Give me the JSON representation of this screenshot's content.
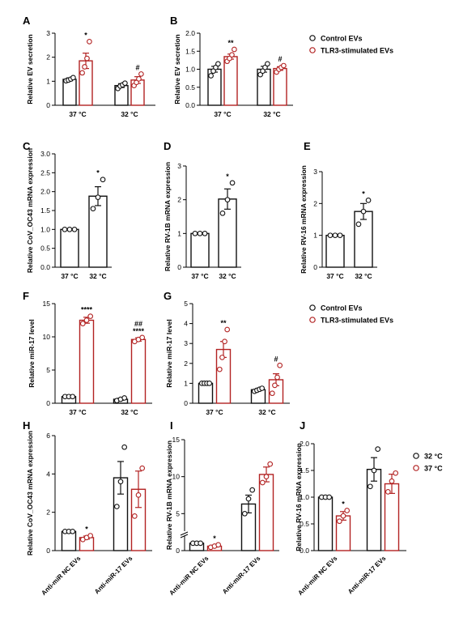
{
  "colors": {
    "control": "#111111",
    "tlr3": "#b22222",
    "t32": "#111111",
    "t37": "#b22222"
  },
  "legend1": {
    "items": [
      {
        "label": "Control EVs",
        "color": "#111111"
      },
      {
        "label": "TLR3-stimulated EVs",
        "color": "#b22222"
      }
    ]
  },
  "legend2": {
    "items": [
      {
        "label": "Control EVs",
        "color": "#111111"
      },
      {
        "label": "TLR3-stimulated EVs",
        "color": "#b22222"
      }
    ]
  },
  "legend3": {
    "items": [
      {
        "label": "32 °C",
        "color": "#111111"
      },
      {
        "label": "37 °C",
        "color": "#b22222"
      }
    ]
  },
  "chart_data": [
    {
      "id": "A",
      "type": "bar",
      "panel": "A",
      "ylabel": "Relative EV secretion",
      "ylim": [
        0,
        3
      ],
      "ticks": [
        0,
        1,
        2,
        3
      ],
      "groups": [
        "37 °C",
        "32 °C"
      ],
      "bars": [
        {
          "group": 0,
          "color": "#111111",
          "mean": 1.08,
          "sem": 0.06,
          "points": [
            1.02,
            1.05,
            1.09,
            1.15
          ]
        },
        {
          "group": 0,
          "color": "#b22222",
          "mean": 1.85,
          "sem": 0.32,
          "points": [
            1.35,
            1.6,
            1.95,
            2.65
          ],
          "sig": "*"
        },
        {
          "group": 1,
          "color": "#111111",
          "mean": 0.82,
          "sem": 0.08,
          "points": [
            0.7,
            0.8,
            0.85,
            0.92
          ]
        },
        {
          "group": 1,
          "color": "#b22222",
          "mean": 1.05,
          "sem": 0.14,
          "points": [
            0.82,
            0.95,
            1.1,
            1.3
          ],
          "sig": "#"
        }
      ]
    },
    {
      "id": "B",
      "type": "bar",
      "panel": "B",
      "ylabel": "Relative EV secretion",
      "ylim": [
        0,
        2
      ],
      "ticks": [
        "0.0",
        "0.5",
        "1.0",
        "1.5",
        "2.0"
      ],
      "tickvals": [
        0,
        0.5,
        1,
        1.5,
        2
      ],
      "groups": [
        "37 °C",
        "32 °C"
      ],
      "bars": [
        {
          "group": 0,
          "color": "#111111",
          "mean": 1.0,
          "sem": 0.08,
          "points": [
            0.82,
            0.95,
            1.05,
            1.15
          ]
        },
        {
          "group": 0,
          "color": "#b22222",
          "mean": 1.35,
          "sem": 0.07,
          "points": [
            1.22,
            1.3,
            1.4,
            1.55
          ],
          "sig": "**"
        },
        {
          "group": 1,
          "color": "#111111",
          "mean": 1.0,
          "sem": 0.08,
          "points": [
            0.85,
            0.95,
            1.05,
            1.15
          ]
        },
        {
          "group": 1,
          "color": "#b22222",
          "mean": 1.02,
          "sem": 0.05,
          "points": [
            0.92,
            1.0,
            1.05,
            1.1
          ],
          "sig": "#"
        }
      ]
    },
    {
      "id": "C",
      "type": "bar",
      "panel": "C",
      "ylabel": "Relative CoV_OC43 mRNA expression",
      "ylim": [
        0,
        3
      ],
      "ticks": [
        "0.0",
        "0.5",
        "1.0",
        "1.5",
        "2.0",
        "2.5",
        "3.0"
      ],
      "tickvals": [
        0,
        0.5,
        1,
        1.5,
        2,
        2.5,
        3
      ],
      "groups": [
        "37 °C",
        "32 °C"
      ],
      "bars": [
        {
          "group": 0,
          "color": "#111111",
          "mean": 1.0,
          "sem": 0.0,
          "points": [
            1.0,
            1.0,
            1.0
          ]
        },
        {
          "group": 1,
          "color": "#111111",
          "mean": 1.88,
          "sem": 0.25,
          "points": [
            1.55,
            1.85,
            2.32
          ],
          "sig": "*"
        }
      ]
    },
    {
      "id": "D",
      "type": "bar",
      "panel": "D",
      "ylabel": "Relative RV-1B mRNA expression",
      "ylim": [
        0,
        3
      ],
      "ticks": [
        "0",
        "1",
        "2",
        "3"
      ],
      "tickvals": [
        0,
        1,
        2,
        3
      ],
      "groups": [
        "37 °C",
        "32 °C"
      ],
      "bars": [
        {
          "group": 0,
          "color": "#111111",
          "mean": 1.0,
          "sem": 0.0,
          "points": [
            1.0,
            1.0,
            1.0
          ]
        },
        {
          "group": 1,
          "color": "#111111",
          "mean": 2.02,
          "sem": 0.3,
          "points": [
            1.6,
            2.0,
            2.5
          ],
          "sig": "*"
        }
      ]
    },
    {
      "id": "E",
      "type": "bar",
      "panel": "E",
      "ylabel": "Relative RV-16 mRNA expression",
      "ylim": [
        0,
        3
      ],
      "ticks": [
        "0",
        "1",
        "2",
        "3"
      ],
      "tickvals": [
        0,
        1,
        2,
        3
      ],
      "groups": [
        "37 °C",
        "32 °C"
      ],
      "bars": [
        {
          "group": 0,
          "color": "#111111",
          "mean": 1.0,
          "sem": 0.0,
          "points": [
            1.0,
            1.0,
            1.0
          ]
        },
        {
          "group": 1,
          "color": "#111111",
          "mean": 1.75,
          "sem": 0.25,
          "points": [
            1.35,
            1.75,
            2.1
          ],
          "sig": "*"
        }
      ]
    },
    {
      "id": "F",
      "type": "bar",
      "panel": "F",
      "ylabel": "Relative miR-17 level",
      "ylim": [
        0,
        15
      ],
      "ticks": [
        "0",
        "5",
        "10",
        "15"
      ],
      "tickvals": [
        0,
        5,
        10,
        15
      ],
      "groups": [
        "37 °C",
        "32 °C"
      ],
      "bars": [
        {
          "group": 0,
          "color": "#111111",
          "mean": 1.0,
          "sem": 0.05,
          "points": [
            1.0,
            1.0,
            1.0
          ]
        },
        {
          "group": 0,
          "color": "#b22222",
          "mean": 12.5,
          "sem": 0.45,
          "points": [
            12.0,
            12.5,
            13.1
          ],
          "sig": "****"
        },
        {
          "group": 1,
          "color": "#111111",
          "mean": 0.6,
          "sem": 0.15,
          "points": [
            0.4,
            0.6,
            0.8
          ]
        },
        {
          "group": 1,
          "color": "#b22222",
          "mean": 9.6,
          "sem": 0.25,
          "points": [
            9.3,
            9.6,
            9.9
          ],
          "sig": "****",
          "sig2": "##"
        }
      ]
    },
    {
      "id": "G",
      "type": "bar",
      "panel": "G",
      "ylabel": "Relative miR-17 level",
      "ylim": [
        0,
        5
      ],
      "ticks": [
        "0",
        "1",
        "2",
        "3",
        "4",
        "5"
      ],
      "tickvals": [
        0,
        1,
        2,
        3,
        4,
        5
      ],
      "groups": [
        "37 °C",
        "32 °C"
      ],
      "bars": [
        {
          "group": 0,
          "color": "#111111",
          "mean": 1.0,
          "sem": 0.0,
          "points": [
            1.0,
            1.0,
            1.0,
            1.0
          ]
        },
        {
          "group": 0,
          "color": "#b22222",
          "mean": 2.7,
          "sem": 0.4,
          "points": [
            1.7,
            2.3,
            3.1,
            3.7
          ],
          "sig": "**"
        },
        {
          "group": 1,
          "color": "#111111",
          "mean": 0.68,
          "sem": 0.06,
          "points": [
            0.6,
            0.65,
            0.7,
            0.75
          ]
        },
        {
          "group": 1,
          "color": "#b22222",
          "mean": 1.18,
          "sem": 0.3,
          "points": [
            0.5,
            0.9,
            1.3,
            1.9
          ],
          "sig": "#"
        }
      ]
    },
    {
      "id": "H",
      "type": "bar",
      "panel": "H",
      "ylabel": "Relative CoV_OC43 mRNA expression",
      "ylim": [
        0,
        6
      ],
      "ticks": [
        "0",
        "2",
        "4",
        "6"
      ],
      "tickvals": [
        0,
        2,
        4,
        6
      ],
      "groups": [
        "Anti-miR NC EVs",
        "Anti-miR-17 EVs"
      ],
      "bars": [
        {
          "group": 0,
          "color": "#111111",
          "mean": 1.0,
          "sem": 0.0,
          "points": [
            1.0,
            1.0,
            1.0
          ]
        },
        {
          "group": 0,
          "color": "#b22222",
          "mean": 0.68,
          "sem": 0.08,
          "points": [
            0.58,
            0.68,
            0.78
          ],
          "sig": "*"
        },
        {
          "group": 1,
          "color": "#111111",
          "mean": 3.8,
          "sem": 0.85,
          "points": [
            2.3,
            3.6,
            5.4
          ]
        },
        {
          "group": 1,
          "color": "#b22222",
          "mean": 3.2,
          "sem": 0.95,
          "points": [
            1.8,
            2.9,
            4.3
          ]
        }
      ]
    },
    {
      "id": "I",
      "type": "bar",
      "panel": "I",
      "ylabel": "Relative RV-1B mRNA expression",
      "broken_axis": true,
      "ylim": [
        0,
        15
      ],
      "ticks": [
        "0",
        "5",
        "10",
        "15"
      ],
      "tickvals": [
        0,
        5,
        10,
        15
      ],
      "groups": [
        "Anti-miR NC EVs",
        "Anti-miR-17 EVs"
      ],
      "bars": [
        {
          "group": 0,
          "color": "#111111",
          "mean": 1.0,
          "sem": 0.0,
          "points": [
            1.0,
            1.0,
            1.0
          ]
        },
        {
          "group": 0,
          "color": "#b22222",
          "mean": 0.6,
          "sem": 0.12,
          "points": [
            0.45,
            0.6,
            0.78
          ],
          "sig": "*"
        },
        {
          "group": 1,
          "color": "#111111",
          "mean": 6.3,
          "sem": 1.2,
          "points": [
            5.0,
            7.0,
            8.2
          ]
        },
        {
          "group": 1,
          "color": "#b22222",
          "mean": 10.3,
          "sem": 1.0,
          "points": [
            9.2,
            10.0,
            11.7
          ]
        }
      ]
    },
    {
      "id": "J",
      "type": "bar",
      "panel": "J",
      "ylabel": "Relative RV-16 mRNA expression",
      "ylim": [
        0,
        2
      ],
      "ticks": [
        "0.0",
        "0.5",
        "1.0",
        "1.5",
        "2.0"
      ],
      "tickvals": [
        0,
        0.5,
        1,
        1.5,
        2
      ],
      "groups": [
        "Anti-miR NC EVs",
        "Anti-miR-17 EVs"
      ],
      "bars": [
        {
          "group": 0,
          "color": "#111111",
          "mean": 1.0,
          "sem": 0.0,
          "points": [
            1.0,
            1.0,
            1.0
          ]
        },
        {
          "group": 0,
          "color": "#b22222",
          "mean": 0.65,
          "sem": 0.08,
          "points": [
            0.55,
            0.65,
            0.75
          ],
          "sig": "*"
        },
        {
          "group": 1,
          "color": "#111111",
          "mean": 1.52,
          "sem": 0.22,
          "points": [
            1.2,
            1.5,
            1.9
          ]
        },
        {
          "group": 1,
          "color": "#b22222",
          "mean": 1.25,
          "sem": 0.18,
          "points": [
            1.1,
            1.3,
            1.45
          ]
        }
      ]
    }
  ]
}
